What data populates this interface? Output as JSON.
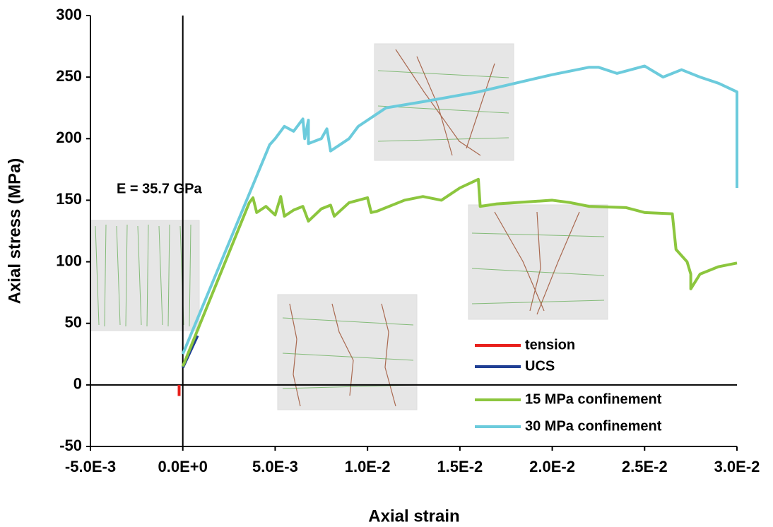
{
  "chart_data": {
    "type": "line",
    "xlabel": "Axial strain",
    "ylabel": "Axial stress (MPa)",
    "annotation": "E = 35.7 GPa",
    "xlim": [
      -0.005,
      0.03
    ],
    "xticks": [
      {
        "value": -0.005,
        "label": "-5.0E-3"
      },
      {
        "value": 0,
        "label": "0.0E+0"
      },
      {
        "value": 0.005,
        "label": "5.0E-3"
      },
      {
        "value": 0.01,
        "label": "1.0E-2"
      },
      {
        "value": 0.015,
        "label": "1.5E-2"
      },
      {
        "value": 0.02,
        "label": "2.0E-2"
      },
      {
        "value": 0.025,
        "label": "2.5E-2"
      },
      {
        "value": 0.03,
        "label": "3.0E-2"
      }
    ],
    "ylim": [
      -50,
      300
    ],
    "yticks": [
      -50,
      0,
      50,
      100,
      150,
      200,
      250,
      300
    ],
    "series": [
      {
        "name": "tension",
        "color": "#e8201c",
        "x": [
          -0.0002,
          -0.0002
        ],
        "values": [
          0,
          -9
        ]
      },
      {
        "name": "UCS",
        "color": "#1f3f94",
        "x": [
          0,
          0.0008
        ],
        "values": [
          14,
          40
        ]
      },
      {
        "name": "15 MPa confinement",
        "color": "#8cc63e",
        "x": [
          0,
          0.0036,
          0.0038,
          0.004,
          0.0045,
          0.005,
          0.0053,
          0.0055,
          0.006,
          0.0065,
          0.0068,
          0.0075,
          0.008,
          0.0082,
          0.009,
          0.01,
          0.0102,
          0.0105,
          0.012,
          0.013,
          0.014,
          0.015,
          0.016,
          0.0161,
          0.017,
          0.02,
          0.021,
          0.022,
          0.024,
          0.025,
          0.0265,
          0.0267,
          0.0273,
          0.0275,
          0.0275,
          0.028,
          0.029,
          0.03
        ],
        "values": [
          15,
          148,
          152,
          140,
          145,
          138,
          153,
          137,
          142,
          145,
          133,
          143,
          146,
          137,
          148,
          152,
          140,
          141,
          150,
          153,
          150,
          160,
          167,
          145,
          147,
          150,
          148,
          145,
          144,
          140,
          139,
          110,
          100,
          90,
          78,
          90,
          96,
          99
        ]
      },
      {
        "name": "30 MPa confinement",
        "color": "#6ccbdc",
        "x": [
          0,
          0.0047,
          0.005,
          0.0055,
          0.006,
          0.0065,
          0.0066,
          0.0068,
          0.0068,
          0.0075,
          0.0078,
          0.008,
          0.009,
          0.0095,
          0.01,
          0.011,
          0.013,
          0.016,
          0.018,
          0.02,
          0.022,
          0.0225,
          0.0235,
          0.025,
          0.026,
          0.027,
          0.028,
          0.029,
          0.03,
          0.03
        ],
        "values": [
          25,
          195,
          200,
          210,
          206,
          216,
          200,
          215,
          196,
          200,
          208,
          190,
          200,
          210,
          215,
          225,
          230,
          238,
          245,
          252,
          258,
          258,
          253,
          259,
          250,
          256,
          250,
          245,
          238,
          160
        ]
      }
    ]
  }
}
